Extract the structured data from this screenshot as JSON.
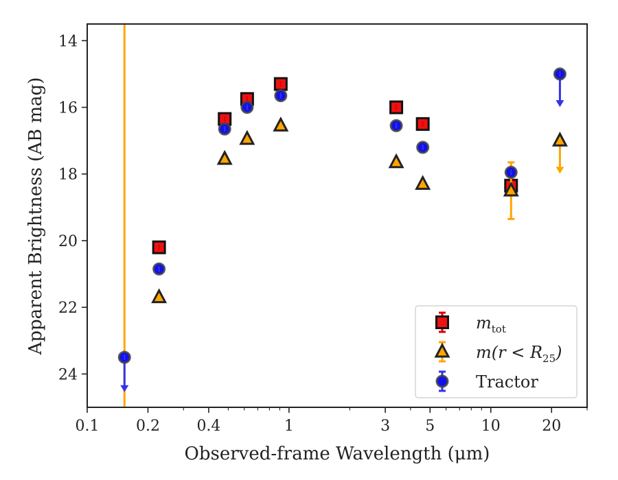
{
  "chart_data": {
    "type": "scatter",
    "title": "",
    "xlabel": "Observed-frame Wavelength (μm)",
    "ylabel": "Apparent Brightness (AB mag)",
    "x_scale": "log",
    "xlim": [
      0.1,
      30
    ],
    "ylim": [
      25,
      13.5
    ],
    "y_inverted": true,
    "x_ticks": [
      {
        "value": 0.1,
        "label": "0.1"
      },
      {
        "value": 0.2,
        "label": "0.2"
      },
      {
        "value": 0.4,
        "label": "0.4"
      },
      {
        "value": 1,
        "label": "1"
      },
      {
        "value": 3,
        "label": "3"
      },
      {
        "value": 5,
        "label": "5"
      },
      {
        "value": 10,
        "label": "10"
      },
      {
        "value": 20,
        "label": "20"
      }
    ],
    "y_ticks": [
      {
        "value": 14,
        "label": "14"
      },
      {
        "value": 16,
        "label": "16"
      },
      {
        "value": 18,
        "label": "18"
      },
      {
        "value": 20,
        "label": "20"
      },
      {
        "value": 22,
        "label": "22"
      },
      {
        "value": 24,
        "label": "24"
      }
    ],
    "grid": false,
    "legend_position": "bottom-right",
    "series": [
      {
        "name": "m_tot",
        "legend_main": "m",
        "legend_sub": "tot",
        "legend_rest": "",
        "marker": "square",
        "color": "#ee1111",
        "edge": "#111111",
        "err_color": "#dd0000",
        "points": [
          {
            "x": 0.227,
            "y": 20.2
          },
          {
            "x": 0.48,
            "y": 16.35
          },
          {
            "x": 0.62,
            "y": 15.75
          },
          {
            "x": 0.91,
            "y": 15.3
          },
          {
            "x": 3.4,
            "y": 16.0
          },
          {
            "x": 4.6,
            "y": 16.5
          },
          {
            "x": 12.6,
            "y": 18.35
          }
        ]
      },
      {
        "name": "m(r<R25)",
        "legend_main": "m(r < R",
        "legend_sub": "25",
        "legend_rest": ")",
        "marker": "triangle",
        "color": "#ffa500",
        "edge": "#222222",
        "err_color": "#ffa500",
        "points": [
          {
            "x": 0.227,
            "y": 21.7
          },
          {
            "x": 0.48,
            "y": 17.55
          },
          {
            "x": 0.62,
            "y": 16.95
          },
          {
            "x": 0.91,
            "y": 16.55
          },
          {
            "x": 3.4,
            "y": 17.65
          },
          {
            "x": 4.6,
            "y": 18.3
          },
          {
            "x": 12.6,
            "y": 18.5,
            "err_low": 17.65,
            "err_high": 19.35
          },
          {
            "x": 22,
            "y": 17.0,
            "upper_limit_to": 17.95
          }
        ]
      },
      {
        "name": "Tractor",
        "legend_main": "Tractor",
        "legend_sub": "",
        "legend_rest": "",
        "marker": "circle",
        "color": "#1111ee",
        "edge": "#444444",
        "err_color": "#3333ee",
        "points": [
          {
            "x": 0.153,
            "y": 23.5,
            "upper_limit_to": 24.5
          },
          {
            "x": 0.227,
            "y": 20.85
          },
          {
            "x": 0.48,
            "y": 16.65
          },
          {
            "x": 0.62,
            "y": 16.0
          },
          {
            "x": 0.91,
            "y": 15.65
          },
          {
            "x": 3.4,
            "y": 16.55
          },
          {
            "x": 4.6,
            "y": 17.2
          },
          {
            "x": 12.6,
            "y": 17.95
          },
          {
            "x": 22,
            "y": 15.0,
            "upper_limit_to": 15.95
          }
        ]
      }
    ],
    "vertical_lines": [
      {
        "x": 0.153,
        "color": "#ffa500"
      }
    ]
  }
}
